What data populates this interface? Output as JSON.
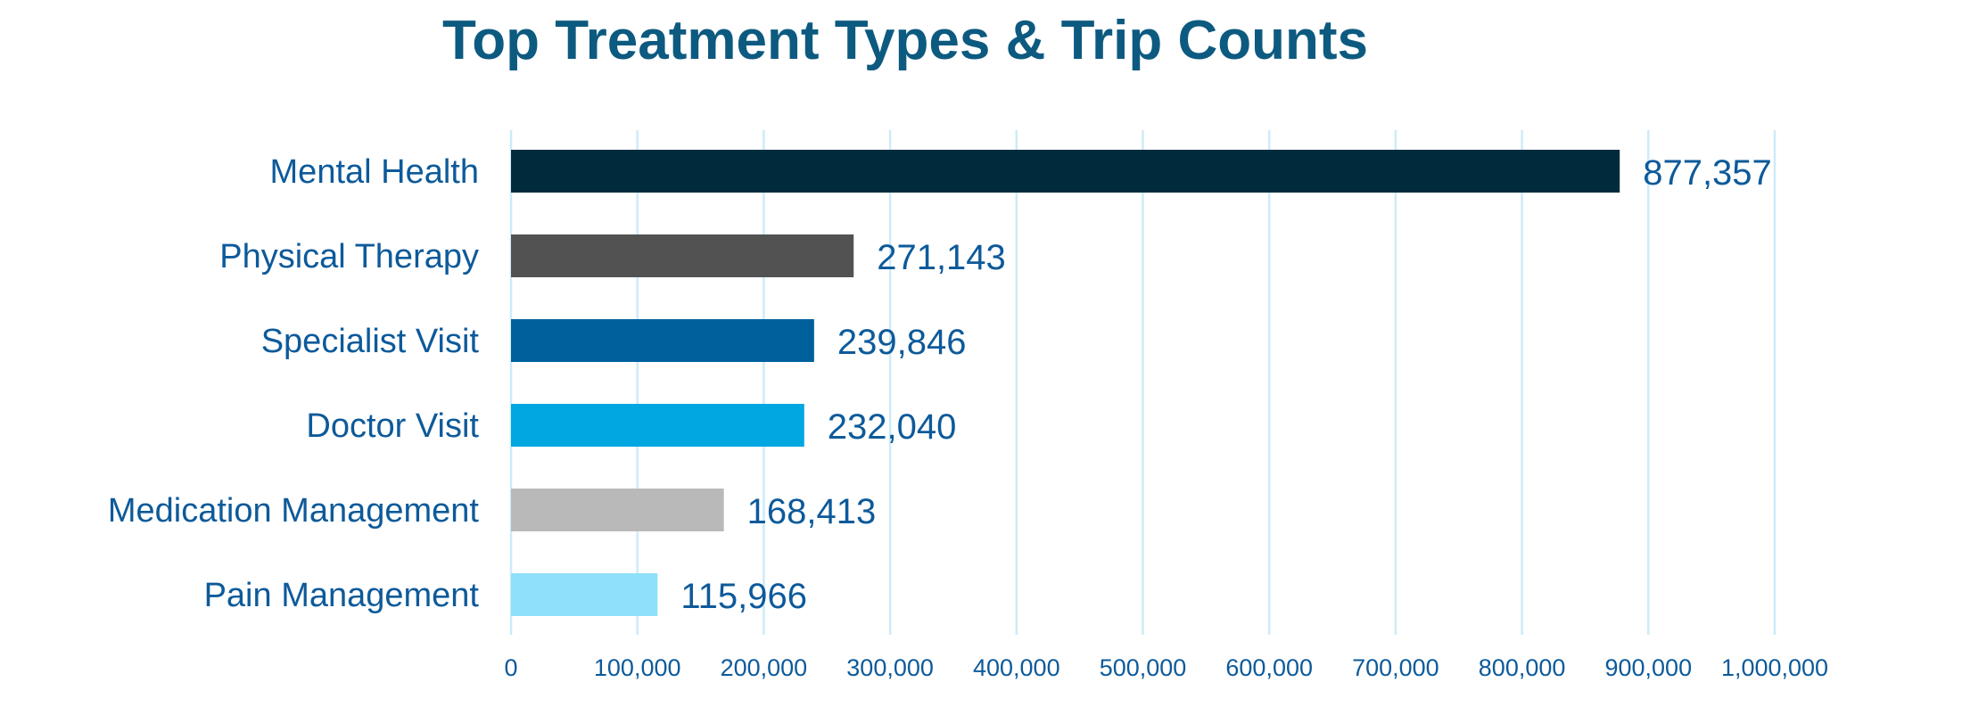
{
  "chart_data": {
    "type": "bar",
    "orientation": "horizontal",
    "title": "Top Treatment Types & Trip Counts",
    "xlabel": "",
    "ylabel": "",
    "categories": [
      "Mental Health",
      "Physical Therapy",
      "Specialist Visit",
      "Doctor Visit",
      "Medication Management",
      "Pain Management"
    ],
    "values": [
      877357,
      271143,
      239846,
      232040,
      168413,
      115966
    ],
    "value_labels": [
      "877,357",
      "271,143",
      "239,846",
      "232,040",
      "168,413",
      "115,966"
    ],
    "bar_colors": [
      "#002b3d",
      "#525252",
      "#00609c",
      "#00a7e1",
      "#b9b9b9",
      "#8ee0fb"
    ],
    "xlim": [
      0,
      1000000
    ],
    "x_ticks": [
      0,
      100000,
      200000,
      300000,
      400000,
      500000,
      600000,
      700000,
      800000,
      900000,
      1000000
    ],
    "x_tick_labels": [
      "0",
      "100,000",
      "200,000",
      "300,000",
      "400,000",
      "500,000",
      "600,000",
      "700,000",
      "800,000",
      "900,000",
      "1,000,000"
    ],
    "grid": true,
    "gridline_color": "#cdebf8",
    "text_color": "#0d5a9a",
    "title_color": "#0d5a80"
  }
}
